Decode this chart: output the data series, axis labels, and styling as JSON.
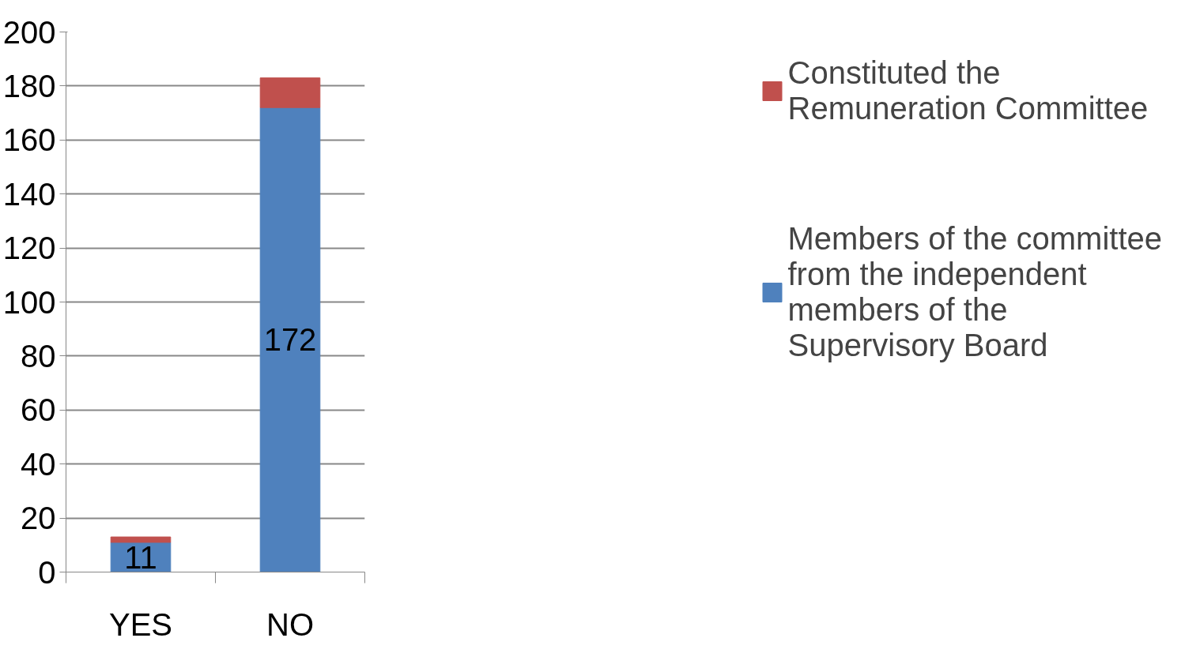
{
  "chart_data": {
    "type": "bar",
    "stacked": true,
    "categories": [
      "YES",
      "NO"
    ],
    "series": [
      {
        "name": "Members of the committee from the independent members of the Supervisory Board",
        "color": "#4f81bd",
        "values": [
          11,
          172
        ],
        "value_labels": [
          "11",
          "172"
        ]
      },
      {
        "name": "Constituted the Remuneration Committee",
        "color": "#c0504d",
        "values": [
          2,
          11
        ]
      }
    ],
    "ylim": [
      0,
      200
    ],
    "yticks": [
      0,
      20,
      40,
      60,
      80,
      100,
      120,
      140,
      160,
      180,
      200
    ],
    "grid": "y",
    "legend": "right"
  }
}
